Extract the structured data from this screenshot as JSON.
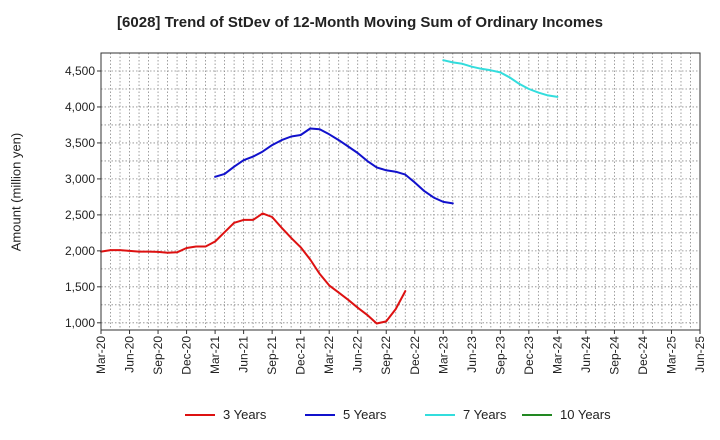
{
  "chart_data": {
    "type": "line",
    "title": "[6028]  Trend of StDev of 12-Month Moving Sum of Ordinary Incomes",
    "xlabel": "",
    "ylabel": "Amount (million yen)",
    "ylim": [
      900,
      4750
    ],
    "y_ticks": [
      1000,
      1500,
      2000,
      2500,
      3000,
      3500,
      4000,
      4500
    ],
    "y_tick_labels": [
      "1,000",
      "1,500",
      "2,000",
      "2,500",
      "3,000",
      "3,500",
      "4,000",
      "4,500"
    ],
    "x_tick_labels": [
      "Mar-20",
      "Jun-20",
      "Sep-20",
      "Dec-20",
      "Mar-21",
      "Jun-21",
      "Sep-21",
      "Dec-21",
      "Mar-22",
      "Jun-22",
      "Sep-22",
      "Dec-22",
      "Mar-23",
      "Jun-23",
      "Sep-23",
      "Dec-23",
      "Mar-24",
      "Jun-24",
      "Sep-24",
      "Dec-24",
      "Mar-25",
      "Jun-25"
    ],
    "grid": true,
    "legend_position": "bottom",
    "series": [
      {
        "name": "3 Years",
        "color": "#dd1111",
        "start_index": 0,
        "values": [
          1990,
          2010,
          2010,
          2000,
          1990,
          1990,
          1985,
          1975,
          1980,
          2040,
          2060,
          2060,
          2130,
          2260,
          2390,
          2430,
          2430,
          2520,
          2470,
          2320,
          2180,
          2050,
          1880,
          1680,
          1520,
          1420,
          1320,
          1210,
          1110,
          990,
          1020,
          1190,
          1440
        ]
      },
      {
        "name": "5 Years",
        "color": "#1111cc",
        "start_index": 12,
        "values": [
          3030,
          3070,
          3170,
          3260,
          3310,
          3380,
          3470,
          3540,
          3590,
          3610,
          3700,
          3690,
          3620,
          3540,
          3450,
          3360,
          3250,
          3160,
          3120,
          3100,
          3060,
          2950,
          2830,
          2740,
          2680,
          2660
        ]
      },
      {
        "name": "7 Years",
        "color": "#33dddd",
        "start_index": 36,
        "values": [
          4650,
          4620,
          4600,
          4560,
          4530,
          4510,
          4480,
          4410,
          4320,
          4250,
          4200,
          4160,
          4140
        ]
      },
      {
        "name": "10 Years",
        "color": "#228822",
        "start_index": 0,
        "values": []
      }
    ]
  }
}
